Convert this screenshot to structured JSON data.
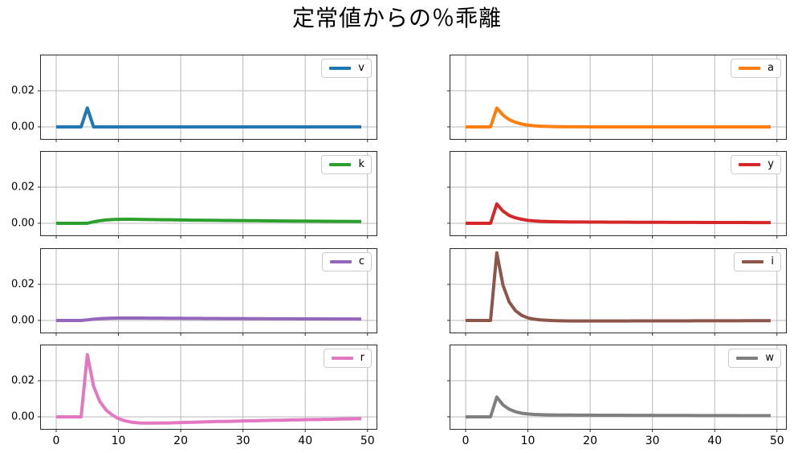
{
  "title": "定常値からの％乖離",
  "chart_data": {
    "type": "line",
    "title": "定常値からの％乖離",
    "layout": {
      "rows": 4,
      "cols": 2,
      "grid": true,
      "legend_position": "upper right",
      "shared_x": true,
      "shared_y": true
    },
    "xlim": [
      -2.45,
      51.45
    ],
    "ylim": [
      -0.0067,
      0.0396
    ],
    "xticks": [
      0,
      10,
      20,
      30,
      40,
      50
    ],
    "xtick_labels": [
      "0",
      "10",
      "20",
      "30",
      "40",
      "50"
    ],
    "yticks": [
      0,
      0.02
    ],
    "ytick_labels": [
      "0.00",
      "0.02"
    ],
    "grid_color": "#b8b8b8",
    "spine_color": "#2b2b2b",
    "line_width": 4,
    "x": [
      0,
      1,
      2,
      3,
      4,
      5,
      6,
      7,
      8,
      9,
      10,
      11,
      12,
      13,
      14,
      15,
      16,
      17,
      18,
      19,
      20,
      21,
      22,
      23,
      24,
      25,
      26,
      27,
      28,
      29,
      30,
      31,
      32,
      33,
      34,
      35,
      36,
      37,
      38,
      39,
      40,
      41,
      42,
      43,
      44,
      45,
      46,
      47,
      48,
      49
    ],
    "series": [
      {
        "name": "v",
        "color": "#1f77b4",
        "values": [
          0,
          0,
          0,
          0,
          0,
          0.0105,
          0,
          0,
          0,
          0,
          0,
          0,
          0,
          0,
          0,
          0,
          0,
          0,
          0,
          0,
          0,
          0,
          0,
          0,
          0,
          0,
          0,
          0,
          0,
          0,
          0,
          0,
          0,
          0,
          0,
          0,
          0,
          0,
          0,
          0,
          0,
          0,
          0,
          0,
          0,
          0,
          0,
          0,
          0,
          0
        ]
      },
      {
        "name": "a",
        "color": "#ff7f0e",
        "values": [
          0,
          0,
          0,
          0,
          0,
          0.0105,
          0.0065,
          0.004,
          0.0025,
          0.00155,
          0.00096,
          0.0006,
          0.00037,
          0.00023,
          0.00014,
          9e-05,
          5e-05,
          3e-05,
          2e-05,
          1e-05,
          0,
          0,
          0,
          0,
          0,
          0,
          0,
          0,
          0,
          0,
          0,
          0,
          0,
          0,
          0,
          0,
          0,
          0,
          0,
          0,
          0,
          0,
          0,
          0,
          0,
          0,
          0,
          0,
          0,
          0
        ]
      },
      {
        "name": "k",
        "color": "#2ca02c",
        "values": [
          0,
          0,
          0,
          0,
          0,
          0,
          0.0008,
          0.0014,
          0.0018,
          0.00205,
          0.00215,
          0.0022,
          0.00218,
          0.00215,
          0.0021,
          0.00205,
          0.002,
          0.00195,
          0.0019,
          0.00185,
          0.0018,
          0.00176,
          0.00172,
          0.00168,
          0.00165,
          0.00162,
          0.00158,
          0.00155,
          0.00152,
          0.00149,
          0.00146,
          0.00143,
          0.0014,
          0.00137,
          0.00134,
          0.00131,
          0.00128,
          0.00125,
          0.00123,
          0.0012,
          0.00118,
          0.00115,
          0.00113,
          0.0011,
          0.00108,
          0.00106,
          0.00104,
          0.00101,
          0.00099,
          0.00097
        ]
      },
      {
        "name": "y",
        "color": "#d62728",
        "values": [
          0,
          0,
          0,
          0,
          0,
          0.0107,
          0.0067,
          0.0043,
          0.003,
          0.0022,
          0.0016,
          0.0013,
          0.0011,
          0.001,
          0.00087,
          0.0008,
          0.00075,
          0.00072,
          0.0007,
          0.00068,
          0.00066,
          0.00064,
          0.00063,
          0.00061,
          0.0006,
          0.00059,
          0.00057,
          0.00056,
          0.00055,
          0.00054,
          0.00053,
          0.00052,
          0.00051,
          0.0005,
          0.00049,
          0.00048,
          0.00047,
          0.00046,
          0.00045,
          0.00044,
          0.00043,
          0.00043,
          0.00042,
          0.00041,
          0.0004,
          0.0004,
          0.00039,
          0.00038,
          0.00038,
          0.00037
        ]
      },
      {
        "name": "c",
        "color": "#9467bd",
        "values": [
          0,
          0,
          0,
          0,
          0,
          0.0003,
          0.0007,
          0.001,
          0.00115,
          0.00125,
          0.0013,
          0.00132,
          0.00132,
          0.00131,
          0.0013,
          0.00128,
          0.00126,
          0.00124,
          0.00122,
          0.0012,
          0.00118,
          0.00116,
          0.00114,
          0.00112,
          0.0011,
          0.00109,
          0.00107,
          0.00105,
          0.00104,
          0.00102,
          0.00101,
          0.00099,
          0.00098,
          0.00096,
          0.00095,
          0.00094,
          0.00092,
          0.00091,
          0.0009,
          0.00089,
          0.00088,
          0.00086,
          0.00085,
          0.00084,
          0.00083,
          0.00082,
          0.00081,
          0.0008,
          0.00079,
          0.00078
        ]
      },
      {
        "name": "i",
        "color": "#8c564b",
        "values": [
          0,
          0,
          0,
          0,
          0,
          0.0375,
          0.0195,
          0.0102,
          0.0054,
          0.0028,
          0.0014,
          0.0007,
          0.0003,
          0.0001,
          -0.0001,
          -0.0002,
          -0.00025,
          -0.0003,
          -0.0003,
          -0.0003,
          -0.0003,
          -0.0003,
          -0.0003,
          -0.00029,
          -0.00029,
          -0.00028,
          -0.00028,
          -0.00027,
          -0.00027,
          -0.00026,
          -0.00026,
          -0.00025,
          -0.00024,
          -0.00024,
          -0.00023,
          -0.00022,
          -0.00022,
          -0.00021,
          -0.0002,
          -0.0002,
          -0.00019,
          -0.00018,
          -0.00018,
          -0.00017,
          -0.00017,
          -0.00016,
          -0.00016,
          -0.00015,
          -0.00015,
          -0.00014
        ]
      },
      {
        "name": "r",
        "color": "#e377c2",
        "values": [
          0,
          0,
          0,
          0,
          0,
          0.0345,
          0.017,
          0.0085,
          0.0038,
          0.001,
          -0.001,
          -0.0022,
          -0.0029,
          -0.0033,
          -0.0035,
          -0.0035,
          -0.0035,
          -0.0034,
          -0.0034,
          -0.0033,
          -0.0032,
          -0.0031,
          -0.003,
          -0.0029,
          -0.0028,
          -0.0027,
          -0.0026,
          -0.0026,
          -0.0025,
          -0.0024,
          -0.0023,
          -0.0022,
          -0.0022,
          -0.0021,
          -0.002,
          -0.0019,
          -0.0019,
          -0.0018,
          -0.0017,
          -0.0017,
          -0.0016,
          -0.0015,
          -0.0015,
          -0.0014,
          -0.0014,
          -0.0013,
          -0.0012,
          -0.0012,
          -0.0011,
          -0.0011
        ]
      },
      {
        "name": "w",
        "color": "#7f7f7f",
        "values": [
          0,
          0,
          0,
          0,
          0,
          0.011,
          0.0066,
          0.0042,
          0.0028,
          0.002,
          0.0016,
          0.0013,
          0.0012,
          0.0011,
          0.00105,
          0.001,
          0.00098,
          0.00096,
          0.00094,
          0.00092,
          0.0009,
          0.00089,
          0.00088,
          0.00086,
          0.00085,
          0.00084,
          0.00083,
          0.00082,
          0.00081,
          0.0008,
          0.00079,
          0.00078,
          0.00077,
          0.00076,
          0.00075,
          0.00074,
          0.00073,
          0.00072,
          0.00072,
          0.00071,
          0.0007,
          0.00069,
          0.00069,
          0.00068,
          0.00067,
          0.00067,
          0.00066,
          0.00065,
          0.00065,
          0.00064
        ]
      }
    ]
  }
}
